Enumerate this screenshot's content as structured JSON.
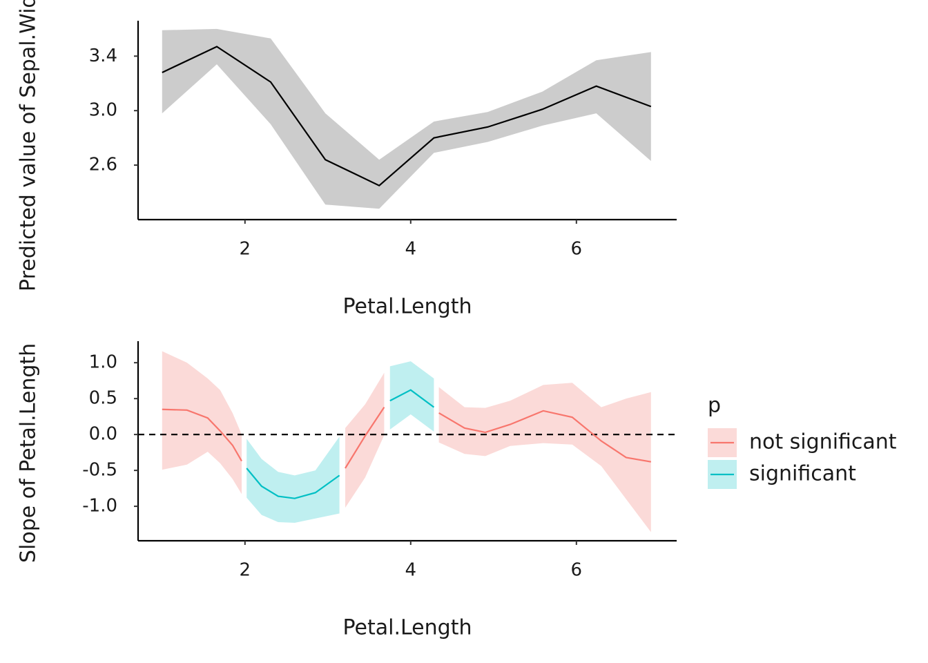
{
  "chart_data": [
    {
      "type": "line",
      "x_label": "Petal.Length",
      "y_label": "Predicted value of Sepal.Width",
      "x": [
        1.0,
        1.66,
        2.31,
        2.97,
        3.62,
        4.28,
        4.93,
        5.59,
        6.24,
        6.9
      ],
      "values": [
        3.28,
        3.47,
        3.21,
        2.64,
        2.45,
        2.8,
        2.88,
        3.01,
        3.18,
        3.03
      ],
      "upper": [
        3.59,
        3.6,
        3.53,
        2.98,
        2.64,
        2.92,
        2.99,
        3.14,
        3.37,
        3.43
      ],
      "lower": [
        2.98,
        3.34,
        2.9,
        2.31,
        2.28,
        2.69,
        2.77,
        2.89,
        2.98,
        2.63
      ],
      "color": "#000000",
      "ribbon_color": "#cccccc",
      "xlim": [
        0.71,
        7.21
      ],
      "ylim": [
        2.2,
        3.66
      ],
      "xticks": [
        2,
        4,
        6
      ],
      "yticks": [
        2.6,
        {
          "value": 3.0,
          "label": "3.0"
        },
        3.4
      ]
    },
    {
      "type": "line",
      "x_label": "Petal.Length",
      "y_label": "Slope of Petal.Length",
      "legend_title": "p",
      "hline": 0,
      "series": [
        {
          "name": "not significant",
          "color": "#F8766D",
          "ribbon_color": "#FBDAD8",
          "segments": [
            {
              "x": [
                1.0,
                1.3,
                1.55,
                1.7,
                1.85,
                1.96
              ],
              "values": [
                0.35,
                0.34,
                0.23,
                0.05,
                -0.15,
                -0.37
              ],
              "upper": [
                1.16,
                1.0,
                0.78,
                0.62,
                0.3,
                0.0
              ],
              "lower": [
                -0.49,
                -0.42,
                -0.24,
                -0.4,
                -0.62,
                -0.83
              ]
            },
            {
              "x": [
                3.21,
                3.45,
                3.68
              ],
              "values": [
                -0.47,
                -0.02,
                0.38
              ],
              "upper": [
                0.09,
                0.42,
                0.86
              ],
              "lower": [
                -1.02,
                -0.6,
                -0.01
              ]
            },
            {
              "x": [
                4.34,
                4.65,
                4.9,
                5.2,
                5.6,
                5.95,
                6.3,
                6.6,
                6.9
              ],
              "values": [
                0.3,
                0.09,
                0.03,
                0.14,
                0.33,
                0.24,
                -0.09,
                -0.32,
                -0.38
              ],
              "upper": [
                0.66,
                0.38,
                0.37,
                0.47,
                0.69,
                0.72,
                0.38,
                0.5,
                0.59
              ],
              "lower": [
                -0.11,
                -0.27,
                -0.3,
                -0.16,
                -0.12,
                -0.14,
                -0.44,
                -0.9,
                -1.36
              ]
            }
          ]
        },
        {
          "name": "significant",
          "color": "#00BFC4",
          "ribbon_color": "#BFEFF0",
          "segments": [
            {
              "x": [
                2.02,
                2.2,
                2.4,
                2.6,
                2.85,
                3.14
              ],
              "values": [
                -0.47,
                -0.72,
                -0.86,
                -0.89,
                -0.81,
                -0.57
              ],
              "upper": [
                -0.06,
                -0.34,
                -0.52,
                -0.57,
                -0.5,
                -0.03
              ],
              "lower": [
                -0.88,
                -1.12,
                -1.22,
                -1.23,
                -1.17,
                -1.1
              ]
            },
            {
              "x": [
                3.75,
                4.0,
                4.28
              ],
              "values": [
                0.47,
                0.62,
                0.38
              ],
              "upper": [
                0.95,
                1.02,
                0.78
              ],
              "lower": [
                0.07,
                0.28,
                0.04
              ]
            }
          ]
        }
      ],
      "xlim": [
        0.71,
        7.21
      ],
      "ylim": [
        -1.48,
        1.3
      ],
      "xticks": [
        2,
        4,
        6
      ],
      "yticks": [
        {
          "value": 1.0,
          "label": "1.0"
        },
        {
          "value": 0.5,
          "label": "0.5"
        },
        {
          "value": 0.0,
          "label": "0.0"
        },
        {
          "value": -0.5,
          "label": "-0.5"
        },
        {
          "value": -1.0,
          "label": "-1.0"
        }
      ]
    }
  ]
}
